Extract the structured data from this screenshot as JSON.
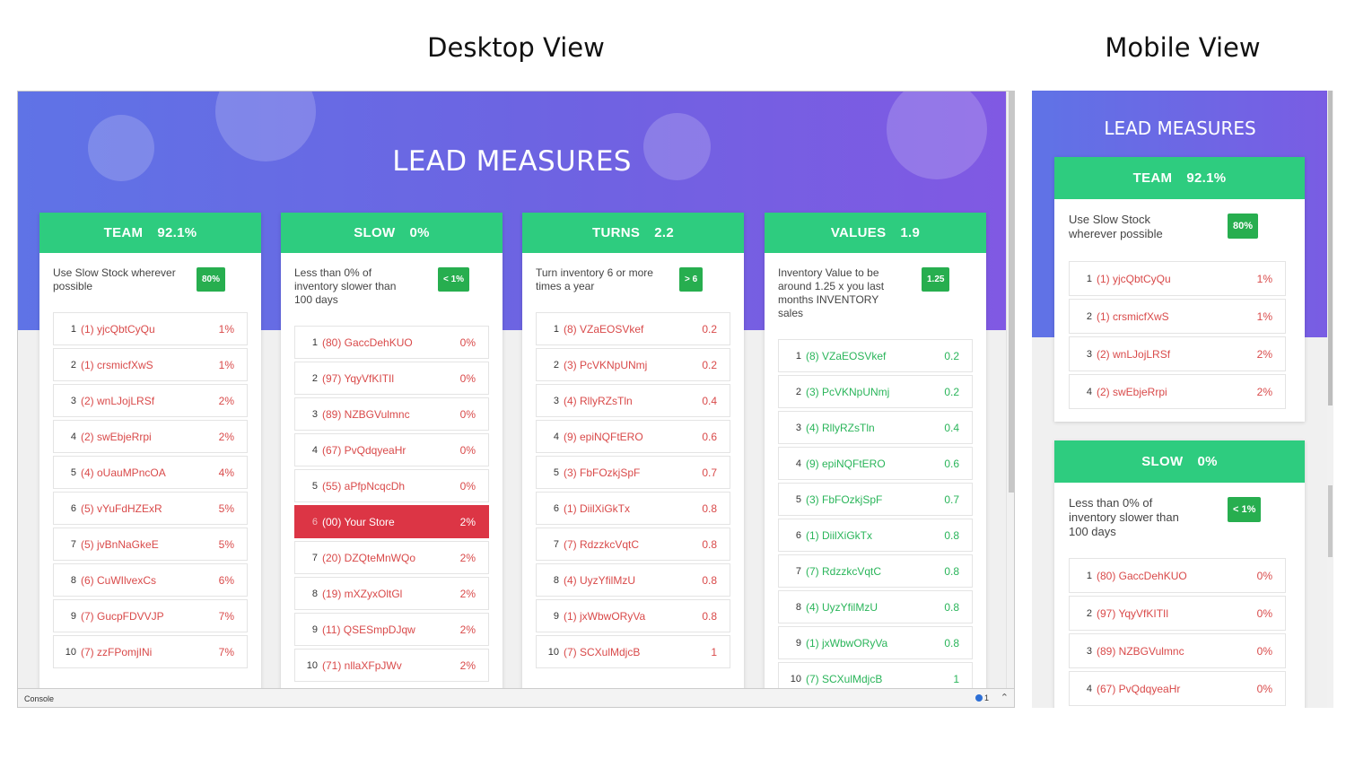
{
  "labels": {
    "desktop_view": "Desktop View",
    "mobile_view": "Mobile View",
    "page_title": "LEAD MEASURES",
    "console": "Console",
    "console_count": "1"
  },
  "colors": {
    "header_green": "#2ecc7f",
    "target_green": "#27ae4f",
    "rank_red": "#d94a4a",
    "highlight_red": "#dc3545",
    "gradient_start": "#5f73e6",
    "gradient_end": "#8059e3"
  },
  "cards": [
    {
      "title": "TEAM",
      "value": "92.1%",
      "description": "Use Slow Stock wherever possible",
      "target": "80%",
      "rows": [
        {
          "rank": "1",
          "name": "(1) yjcQbtCyQu",
          "value": "1%"
        },
        {
          "rank": "2",
          "name": "(1) crsmicfXwS",
          "value": "1%"
        },
        {
          "rank": "3",
          "name": "(2) wnLJojLRSf",
          "value": "2%"
        },
        {
          "rank": "4",
          "name": "(2) swEbjeRrpi",
          "value": "2%"
        },
        {
          "rank": "5",
          "name": "(4) oUauMPncOA",
          "value": "4%"
        },
        {
          "rank": "6",
          "name": "(5) vYuFdHZExR",
          "value": "5%"
        },
        {
          "rank": "7",
          "name": "(5) jvBnNaGkeE",
          "value": "5%"
        },
        {
          "rank": "8",
          "name": "(6) CuWIlvexCs",
          "value": "6%"
        },
        {
          "rank": "9",
          "name": "(7) GucpFDVVJP",
          "value": "7%"
        },
        {
          "rank": "10",
          "name": "(7) zzFPomjINi",
          "value": "7%"
        }
      ]
    },
    {
      "title": "SLOW",
      "value": "0%",
      "description": "Less than 0% of inventory slower than 100 days",
      "target": "< 1%",
      "rows": [
        {
          "rank": "1",
          "name": "(80) GaccDehKUO",
          "value": "0%"
        },
        {
          "rank": "2",
          "name": "(97) YqyVfKITIl",
          "value": "0%"
        },
        {
          "rank": "3",
          "name": "(89) NZBGVulmnc",
          "value": "0%"
        },
        {
          "rank": "4",
          "name": "(67) PvQdqyeaHr",
          "value": "0%"
        },
        {
          "rank": "5",
          "name": "(55) aPfpNcqcDh",
          "value": "0%"
        },
        {
          "rank": "6",
          "name": "(00) Your Store",
          "value": "2%"
        },
        {
          "rank": "7",
          "name": "(20) DZQteMnWQo",
          "value": "2%"
        },
        {
          "rank": "8",
          "name": "(19) mXZyxOltGl",
          "value": "2%"
        },
        {
          "rank": "9",
          "name": "(11) QSESmpDJqw",
          "value": "2%"
        },
        {
          "rank": "10",
          "name": "(71) nllaXFpJWv",
          "value": "2%"
        }
      ]
    },
    {
      "title": "TURNS",
      "value": "2.2",
      "description": "Turn inventory 6 or more times a year",
      "target": "> 6",
      "rows": [
        {
          "rank": "1",
          "name": "(8) VZaEOSVkef",
          "value": "0.2"
        },
        {
          "rank": "2",
          "name": "(3) PcVKNpUNmj",
          "value": "0.2"
        },
        {
          "rank": "3",
          "name": "(4) RllyRZsTln",
          "value": "0.4"
        },
        {
          "rank": "4",
          "name": "(9) epiNQFtERO",
          "value": "0.6"
        },
        {
          "rank": "5",
          "name": "(3) FbFOzkjSpF",
          "value": "0.7"
        },
        {
          "rank": "6",
          "name": "(1) DiilXiGkTx",
          "value": "0.8"
        },
        {
          "rank": "7",
          "name": "(7) RdzzkcVqtC",
          "value": "0.8"
        },
        {
          "rank": "8",
          "name": "(4) UyzYfilMzU",
          "value": "0.8"
        },
        {
          "rank": "9",
          "name": "(1) jxWbwORyVa",
          "value": "0.8"
        },
        {
          "rank": "10",
          "name": "(7) SCXulMdjcB",
          "value": "1"
        }
      ]
    },
    {
      "title": "VALUES",
      "value": "1.9",
      "description": "Inventory Value to be around 1.25 x you last months INVENTORY sales",
      "target": "1.25",
      "rows": [
        {
          "rank": "1",
          "name": "(8) VZaEOSVkef",
          "value": "0.2"
        },
        {
          "rank": "2",
          "name": "(3) PcVKNpUNmj",
          "value": "0.2"
        },
        {
          "rank": "3",
          "name": "(4) RllyRZsTln",
          "value": "0.4"
        },
        {
          "rank": "4",
          "name": "(9) epiNQFtERO",
          "value": "0.6"
        },
        {
          "rank": "5",
          "name": "(3) FbFOzkjSpF",
          "value": "0.7"
        },
        {
          "rank": "6",
          "name": "(1) DiilXiGkTx",
          "value": "0.8"
        },
        {
          "rank": "7",
          "name": "(7) RdzzkcVqtC",
          "value": "0.8"
        },
        {
          "rank": "8",
          "name": "(4) UyzYfilMzU",
          "value": "0.8"
        },
        {
          "rank": "9",
          "name": "(1) jxWbwORyVa",
          "value": "0.8"
        },
        {
          "rank": "10",
          "name": "(7) SCXulMdjcB",
          "value": "1"
        }
      ]
    }
  ]
}
